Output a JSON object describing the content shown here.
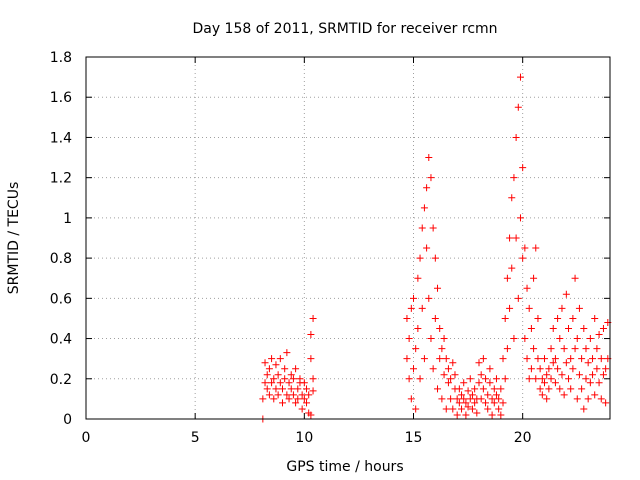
{
  "chart_data": {
    "type": "scatter",
    "title": "Day 158 of 2011, SRMTID for receiver rcmn",
    "xlabel": "GPS time / hours",
    "ylabel": "SRMTID / TECUs",
    "xlim": [
      0,
      24
    ],
    "ylim": [
      0,
      1.8
    ],
    "xticks": [
      0,
      5,
      10,
      15,
      20
    ],
    "yticks": [
      0,
      0.2,
      0.4,
      0.6,
      0.8,
      1,
      1.2,
      1.4,
      1.6,
      1.8
    ],
    "ytick_labels": [
      "0",
      "0.2",
      "0.4",
      "0.6",
      "0.8",
      "1",
      "1.2",
      "1.4",
      "1.6",
      "1.8"
    ],
    "xtick_labels": [
      "0",
      "5",
      "10",
      "15",
      "20"
    ],
    "grid": true,
    "marker": "+",
    "color": "#ff0000",
    "series": [
      {
        "name": "SRMTID",
        "points": [
          [
            8.1,
            0.0
          ],
          [
            8.1,
            0.1
          ],
          [
            8.2,
            0.18
          ],
          [
            8.2,
            0.28
          ],
          [
            8.3,
            0.15
          ],
          [
            8.3,
            0.22
          ],
          [
            8.4,
            0.12
          ],
          [
            8.4,
            0.25
          ],
          [
            8.5,
            0.3
          ],
          [
            8.5,
            0.18
          ],
          [
            8.6,
            0.1
          ],
          [
            8.6,
            0.2
          ],
          [
            8.7,
            0.27
          ],
          [
            8.7,
            0.15
          ],
          [
            8.8,
            0.12
          ],
          [
            8.8,
            0.22
          ],
          [
            8.9,
            0.3
          ],
          [
            8.9,
            0.18
          ],
          [
            9.0,
            0.08
          ],
          [
            9.0,
            0.15
          ],
          [
            9.1,
            0.2
          ],
          [
            9.1,
            0.25
          ],
          [
            9.2,
            0.33
          ],
          [
            9.2,
            0.12
          ],
          [
            9.3,
            0.18
          ],
          [
            9.3,
            0.1
          ],
          [
            9.4,
            0.22
          ],
          [
            9.4,
            0.15
          ],
          [
            9.5,
            0.12
          ],
          [
            9.5,
            0.2
          ],
          [
            9.6,
            0.25
          ],
          [
            9.6,
            0.08
          ],
          [
            9.7,
            0.15
          ],
          [
            9.7,
            0.1
          ],
          [
            9.8,
            0.18
          ],
          [
            9.8,
            0.2
          ],
          [
            9.9,
            0.12
          ],
          [
            9.9,
            0.05
          ],
          [
            10.0,
            0.1
          ],
          [
            10.0,
            0.18
          ],
          [
            10.1,
            0.08
          ],
          [
            10.1,
            0.15
          ],
          [
            10.2,
            0.03
          ],
          [
            10.2,
            0.12
          ],
          [
            10.3,
            0.3
          ],
          [
            10.3,
            0.42
          ],
          [
            10.4,
            0.5
          ],
          [
            10.4,
            0.2
          ],
          [
            10.3,
            0.02
          ],
          [
            10.4,
            0.14
          ],
          [
            14.7,
            0.5
          ],
          [
            14.7,
            0.3
          ],
          [
            14.8,
            0.2
          ],
          [
            14.8,
            0.4
          ],
          [
            14.9,
            0.55
          ],
          [
            14.9,
            0.1
          ],
          [
            15.0,
            0.25
          ],
          [
            15.0,
            0.6
          ],
          [
            15.1,
            0.35
          ],
          [
            15.1,
            0.05
          ],
          [
            15.2,
            0.7
          ],
          [
            15.2,
            0.45
          ],
          [
            15.3,
            0.8
          ],
          [
            15.3,
            0.2
          ],
          [
            15.4,
            0.95
          ],
          [
            15.4,
            0.55
          ],
          [
            15.5,
            1.05
          ],
          [
            15.5,
            0.3
          ],
          [
            15.6,
            1.15
          ],
          [
            15.6,
            0.85
          ],
          [
            15.7,
            1.3
          ],
          [
            15.7,
            0.6
          ],
          [
            15.8,
            1.2
          ],
          [
            15.8,
            0.4
          ],
          [
            15.9,
            0.95
          ],
          [
            15.9,
            0.25
          ],
          [
            16.0,
            0.8
          ],
          [
            16.0,
            0.5
          ],
          [
            16.1,
            0.65
          ],
          [
            16.1,
            0.15
          ],
          [
            16.2,
            0.45
          ],
          [
            16.2,
            0.3
          ],
          [
            16.3,
            0.35
          ],
          [
            16.3,
            0.1
          ],
          [
            16.4,
            0.4
          ],
          [
            16.4,
            0.22
          ],
          [
            16.5,
            0.3
          ],
          [
            16.5,
            0.05
          ],
          [
            16.6,
            0.25
          ],
          [
            16.6,
            0.18
          ],
          [
            16.7,
            0.2
          ],
          [
            16.7,
            0.1
          ],
          [
            16.8,
            0.28
          ],
          [
            16.8,
            0.05
          ],
          [
            16.9,
            0.15
          ],
          [
            16.9,
            0.22
          ],
          [
            17.0,
            0.1
          ],
          [
            17.0,
            0.02
          ],
          [
            17.1,
            0.15
          ],
          [
            17.1,
            0.08
          ],
          [
            17.2,
            0.12
          ],
          [
            17.2,
            0.05
          ],
          [
            17.3,
            0.18
          ],
          [
            17.3,
            0.1
          ],
          [
            17.4,
            0.08
          ],
          [
            17.4,
            0.02
          ],
          [
            17.5,
            0.14
          ],
          [
            17.5,
            0.06
          ],
          [
            17.6,
            0.1
          ],
          [
            17.6,
            0.2
          ],
          [
            17.7,
            0.05
          ],
          [
            17.7,
            0.12
          ],
          [
            17.8,
            0.15
          ],
          [
            17.8,
            0.08
          ],
          [
            17.9,
            0.1
          ],
          [
            17.9,
            0.03
          ],
          [
            18.0,
            0.18
          ],
          [
            18.0,
            0.28
          ],
          [
            18.1,
            0.1
          ],
          [
            18.1,
            0.22
          ],
          [
            18.2,
            0.3
          ],
          [
            18.2,
            0.15
          ],
          [
            18.3,
            0.08
          ],
          [
            18.3,
            0.2
          ],
          [
            18.4,
            0.12
          ],
          [
            18.4,
            0.05
          ],
          [
            18.5,
            0.18
          ],
          [
            18.5,
            0.25
          ],
          [
            18.6,
            0.1
          ],
          [
            18.6,
            0.02
          ],
          [
            18.7,
            0.15
          ],
          [
            18.7,
            0.08
          ],
          [
            18.8,
            0.12
          ],
          [
            18.8,
            0.2
          ],
          [
            18.9,
            0.05
          ],
          [
            18.9,
            0.1
          ],
          [
            19.0,
            0.02
          ],
          [
            19.0,
            0.15
          ],
          [
            19.1,
            0.3
          ],
          [
            19.1,
            0.08
          ],
          [
            19.2,
            0.5
          ],
          [
            19.2,
            0.2
          ],
          [
            19.3,
            0.7
          ],
          [
            19.3,
            0.35
          ],
          [
            19.4,
            0.9
          ],
          [
            19.4,
            0.55
          ],
          [
            19.5,
            1.1
          ],
          [
            19.5,
            0.75
          ],
          [
            19.6,
            1.2
          ],
          [
            19.6,
            0.4
          ],
          [
            19.7,
            1.4
          ],
          [
            19.7,
            0.9
          ],
          [
            19.8,
            1.55
          ],
          [
            19.8,
            0.6
          ],
          [
            19.9,
            1.7
          ],
          [
            19.9,
            1.0
          ],
          [
            20.0,
            1.25
          ],
          [
            20.0,
            0.8
          ],
          [
            20.1,
            0.85
          ],
          [
            20.1,
            0.4
          ],
          [
            20.2,
            0.65
          ],
          [
            20.2,
            0.3
          ],
          [
            20.3,
            0.55
          ],
          [
            20.3,
            0.2
          ],
          [
            20.4,
            0.45
          ],
          [
            20.4,
            0.25
          ],
          [
            20.5,
            0.7
          ],
          [
            20.5,
            0.35
          ],
          [
            20.6,
            0.85
          ],
          [
            20.6,
            0.2
          ],
          [
            20.7,
            0.5
          ],
          [
            20.7,
            0.3
          ],
          [
            20.8,
            0.25
          ],
          [
            20.8,
            0.15
          ],
          [
            20.9,
            0.2
          ],
          [
            20.9,
            0.12
          ],
          [
            21.0,
            0.3
          ],
          [
            21.0,
            0.18
          ],
          [
            21.1,
            0.22
          ],
          [
            21.1,
            0.1
          ],
          [
            21.2,
            0.25
          ],
          [
            21.2,
            0.15
          ],
          [
            21.3,
            0.35
          ],
          [
            21.3,
            0.2
          ],
          [
            21.4,
            0.45
          ],
          [
            21.4,
            0.28
          ],
          [
            21.5,
            0.3
          ],
          [
            21.5,
            0.18
          ],
          [
            21.6,
            0.5
          ],
          [
            21.6,
            0.25
          ],
          [
            21.7,
            0.4
          ],
          [
            21.7,
            0.15
          ],
          [
            21.8,
            0.55
          ],
          [
            21.8,
            0.22
          ],
          [
            21.9,
            0.35
          ],
          [
            21.9,
            0.12
          ],
          [
            22.0,
            0.62
          ],
          [
            22.0,
            0.28
          ],
          [
            22.1,
            0.45
          ],
          [
            22.1,
            0.2
          ],
          [
            22.2,
            0.3
          ],
          [
            22.2,
            0.15
          ],
          [
            22.3,
            0.5
          ],
          [
            22.3,
            0.25
          ],
          [
            22.4,
            0.7
          ],
          [
            22.4,
            0.35
          ],
          [
            22.5,
            0.4
          ],
          [
            22.5,
            0.1
          ],
          [
            22.6,
            0.55
          ],
          [
            22.6,
            0.22
          ],
          [
            22.7,
            0.3
          ],
          [
            22.7,
            0.15
          ],
          [
            22.8,
            0.45
          ],
          [
            22.8,
            0.05
          ],
          [
            22.9,
            0.35
          ],
          [
            22.9,
            0.2
          ],
          [
            23.0,
            0.28
          ],
          [
            23.0,
            0.1
          ],
          [
            23.1,
            0.4
          ],
          [
            23.1,
            0.18
          ],
          [
            23.2,
            0.3
          ],
          [
            23.2,
            0.22
          ],
          [
            23.3,
            0.5
          ],
          [
            23.3,
            0.12
          ],
          [
            23.4,
            0.35
          ],
          [
            23.4,
            0.25
          ],
          [
            23.5,
            0.42
          ],
          [
            23.5,
            0.18
          ],
          [
            23.6,
            0.3
          ],
          [
            23.6,
            0.1
          ],
          [
            23.7,
            0.45
          ],
          [
            23.7,
            0.22
          ],
          [
            23.8,
            0.25
          ],
          [
            23.8,
            0.08
          ],
          [
            23.9,
            0.48
          ],
          [
            23.9,
            0.3
          ]
        ]
      }
    ]
  }
}
